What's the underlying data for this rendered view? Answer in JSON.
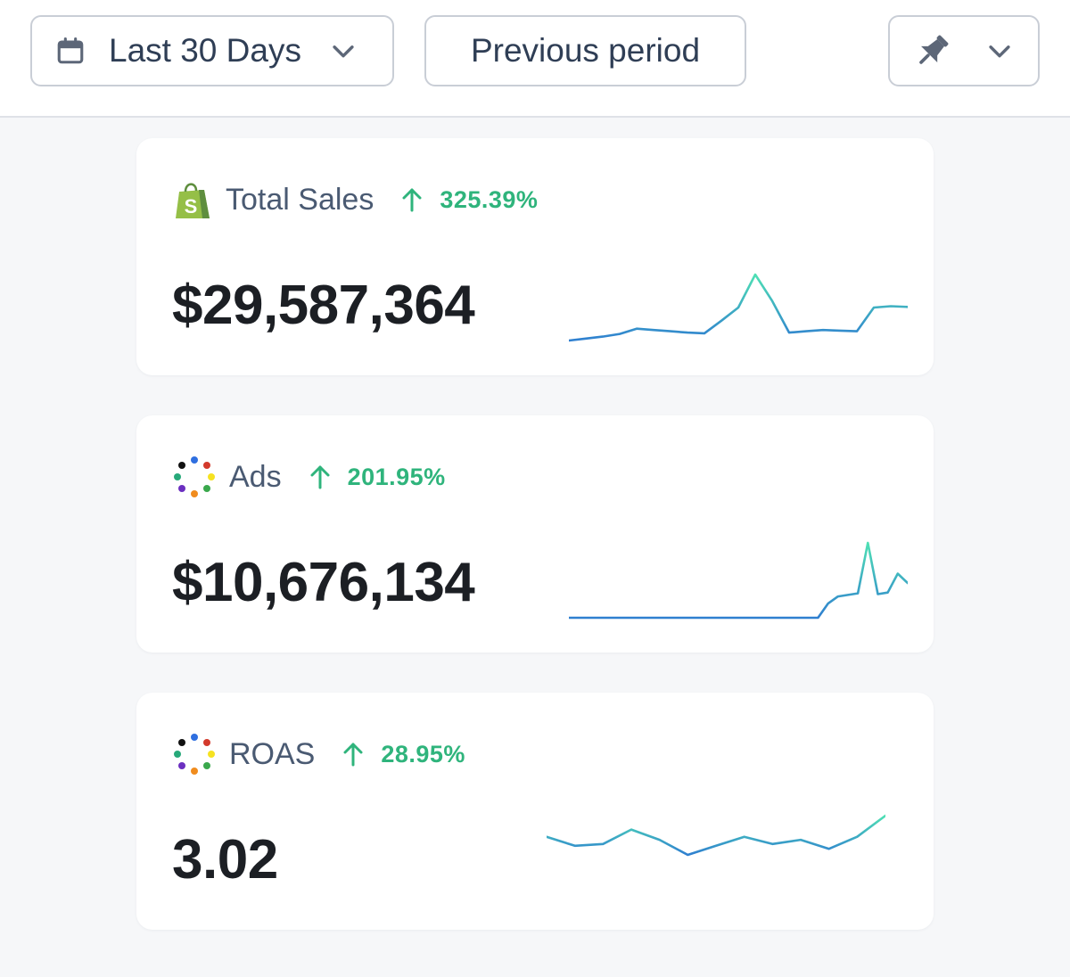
{
  "toolbar": {
    "date_range": {
      "label": "Last 30 Days",
      "icon": "calendar-icon",
      "chevron": "chevron-down-icon"
    },
    "compare": {
      "label": "Previous period"
    },
    "pin": {
      "icon": "pin-icon",
      "chevron": "chevron-down-icon"
    }
  },
  "colors": {
    "positive": "#2fb47c",
    "spark_start": "#2f7fd0",
    "spark_end": "#4fe0b4"
  },
  "cards": [
    {
      "title": "Total Sales",
      "icon": "shopify-icon",
      "change": "325.39%",
      "change_direction": "up",
      "value": "$29,587,364",
      "sparkline": [
        0.0,
        0.03,
        0.06,
        0.1,
        0.18,
        0.16,
        0.14,
        0.12,
        0.11,
        0.3,
        0.5,
        1.0,
        0.6,
        0.12,
        0.14,
        0.16,
        0.15,
        0.14,
        0.5,
        0.52,
        0.51
      ]
    },
    {
      "title": "Ads",
      "icon": "dots-ring-icon",
      "change": "201.95%",
      "change_direction": "up",
      "value": "$10,676,134",
      "sparkline": [
        0,
        0,
        0,
        0,
        0,
        0,
        0,
        0,
        0,
        0,
        0,
        0,
        0,
        0,
        0,
        0,
        0,
        0,
        0,
        0,
        0,
        0,
        0,
        0,
        0,
        0,
        0.18,
        0.27,
        0.29,
        0.31,
        0.95,
        0.3,
        0.32,
        0.56,
        0.44
      ]
    },
    {
      "title": "ROAS",
      "icon": "dots-ring-icon",
      "change": "28.95%",
      "change_direction": "up",
      "value": "3.02",
      "sparkline": [
        0.6,
        0.45,
        0.48,
        0.72,
        0.55,
        0.3,
        0.45,
        0.6,
        0.48,
        0.55,
        0.4,
        0.6,
        0.95
      ]
    }
  ]
}
